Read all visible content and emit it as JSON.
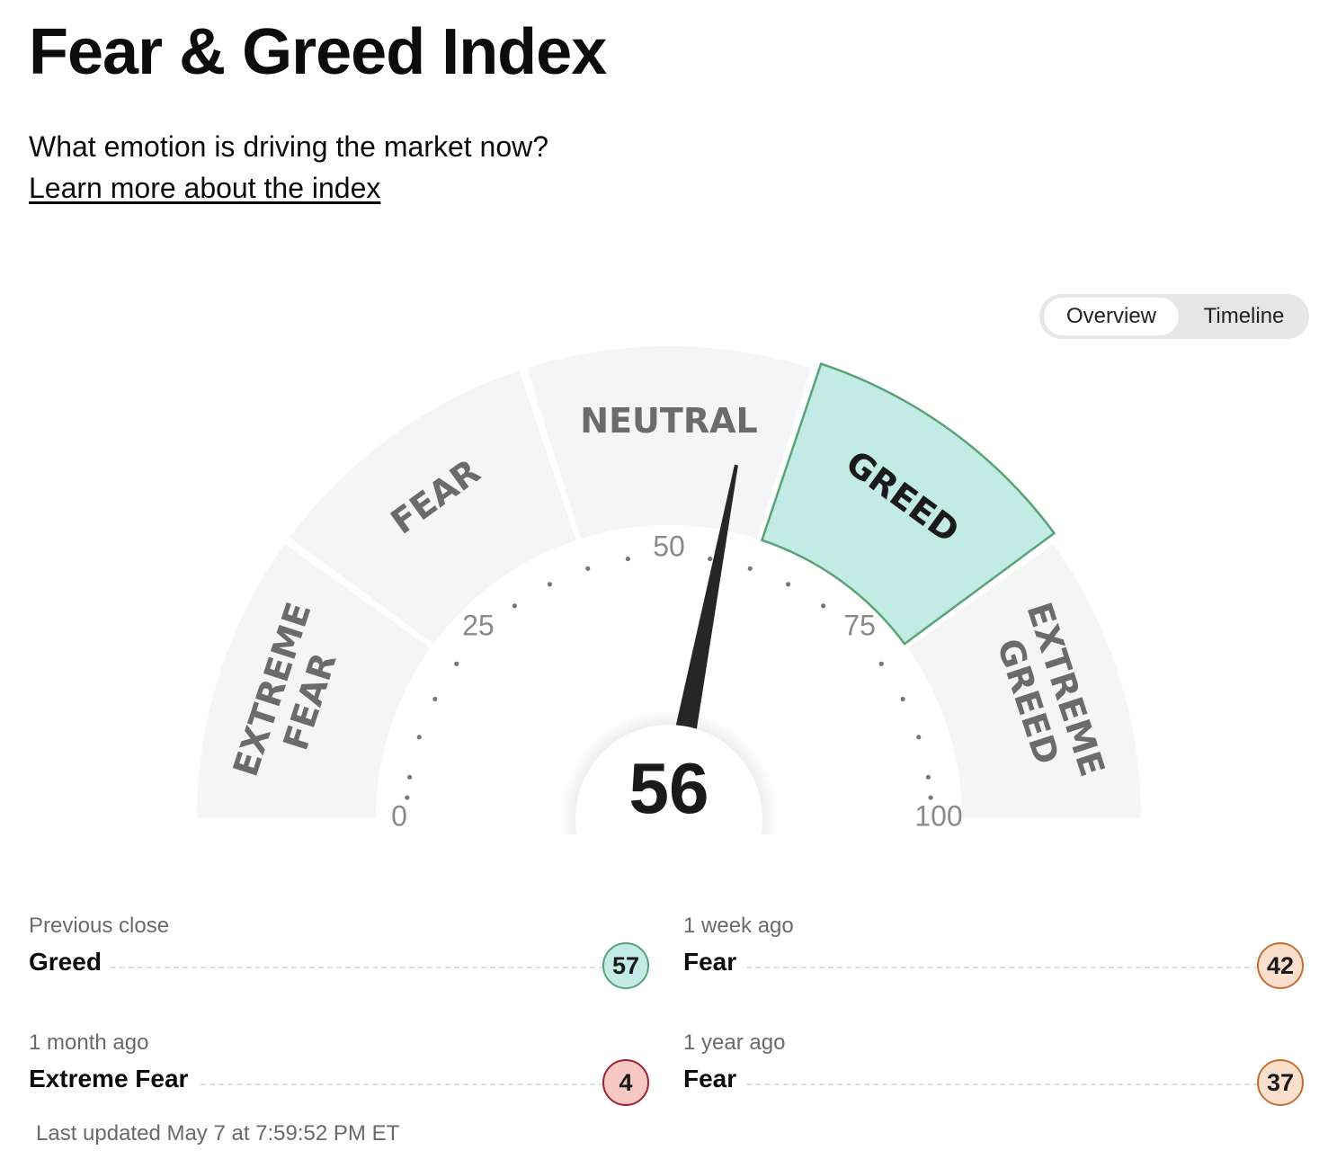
{
  "header": {
    "title": "Fear & Greed Index",
    "subtitle": "What emotion is driving the market now?",
    "learn_more": "Learn more about the index"
  },
  "view_toggle": {
    "overview": "Overview",
    "timeline": "Timeline",
    "selected": "Overview"
  },
  "gauge": {
    "value": 56,
    "active_segment": 3,
    "segments": [
      {
        "lines": [
          "EXTREME",
          "FEAR"
        ]
      },
      {
        "lines": [
          "FEAR"
        ]
      },
      {
        "lines": [
          "NEUTRAL"
        ]
      },
      {
        "lines": [
          "GREED"
        ]
      },
      {
        "lines": [
          "EXTREME",
          "GREED"
        ]
      }
    ],
    "ticks": [
      "0",
      "25",
      "50",
      "75",
      "100"
    ],
    "colors": {
      "segment_bg": "#f5f5f5",
      "active_fill": "#c3ebe5",
      "active_stroke": "#5aa275",
      "needle": "#262626"
    }
  },
  "history": [
    {
      "period": "Previous close",
      "rating": "Greed",
      "value": "57",
      "badge_bg": "#c3ebe5",
      "badge_border": "#5aa275"
    },
    {
      "period": "1 week ago",
      "rating": "Fear",
      "value": "42",
      "badge_bg": "#fbdfcd",
      "badge_border": "#c56f33"
    },
    {
      "period": "1 month ago",
      "rating": "Extreme Fear",
      "value": "4",
      "badge_bg": "#f6c8c4",
      "badge_border": "#9b2335"
    },
    {
      "period": "1 year ago",
      "rating": "Fear",
      "value": "37",
      "badge_bg": "#fbdfcd",
      "badge_border": "#c56f33"
    }
  ],
  "last_updated": "Last updated May 7 at 7:59:52 PM ET"
}
